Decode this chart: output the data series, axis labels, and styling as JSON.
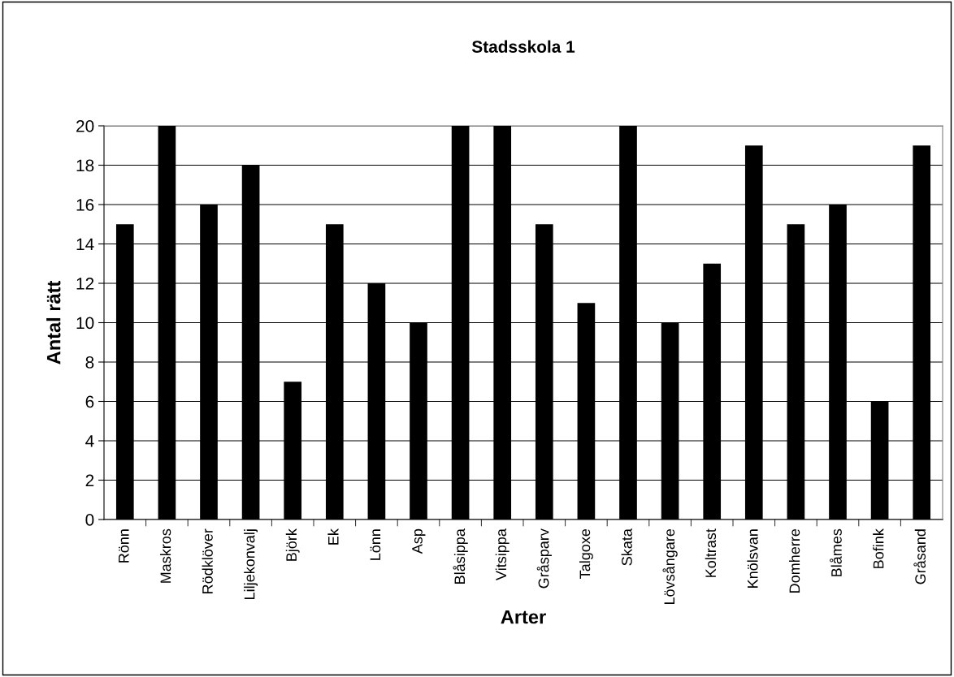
{
  "chart_data": {
    "type": "bar",
    "title": "Stadsskola 1",
    "xlabel": "Arter",
    "ylabel": "Antal rätt",
    "categories": [
      "Rönn",
      "Maskros",
      "Rödklöver",
      "Liljekonvalj",
      "Björk",
      "Ek",
      "Lönn",
      "Asp",
      "Blåsippa",
      "Vitsippa",
      "Gråsparv",
      "Talgoxe",
      "Skata",
      "Lövsångare",
      "Koltrast",
      "Knölsvan",
      "Domherre",
      "Blåmes",
      "Bofink",
      "Gråsand"
    ],
    "values": [
      15,
      20,
      16,
      18,
      7,
      15,
      12,
      10,
      20,
      20,
      15,
      11,
      20,
      10,
      13,
      19,
      15,
      16,
      6,
      19
    ],
    "color": "#000000",
    "ylim": [
      0,
      20
    ],
    "yticks": [
      0,
      2,
      4,
      6,
      8,
      10,
      12,
      14,
      16,
      18,
      20
    ],
    "grid": "y",
    "legend": false
  }
}
